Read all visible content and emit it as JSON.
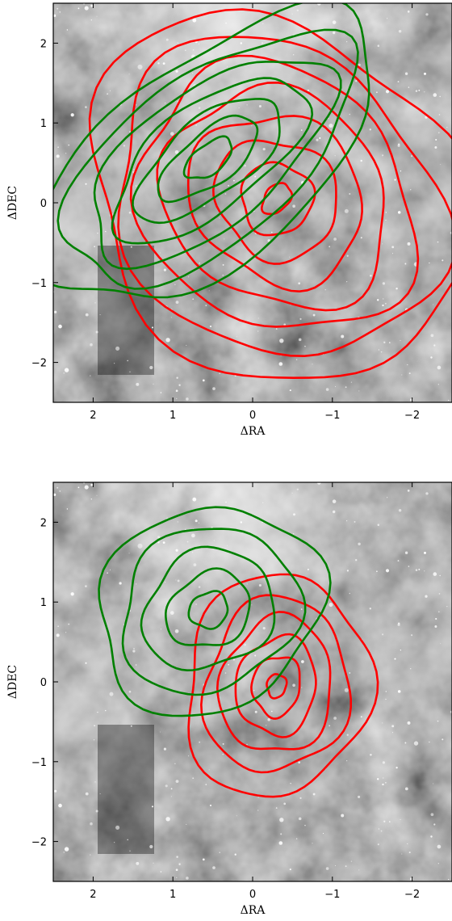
{
  "chart_data": [
    {
      "type": "contour",
      "title": "",
      "xlabel": "ΔRA",
      "ylabel": "ΔDEC",
      "xlim": [
        2.5,
        -2.5
      ],
      "ylim": [
        -2.5,
        2.5
      ],
      "x_ticks": [
        2,
        1,
        0,
        -1,
        -2
      ],
      "y_ticks": [
        -2,
        -1,
        0,
        1,
        2
      ],
      "x_tick_labels": [
        "2",
        "1",
        "0",
        "−1",
        "−2"
      ],
      "y_tick_labels": [
        "−2",
        "−1",
        "0",
        "1",
        "2"
      ],
      "background": "grayscale nebula image with stars",
      "grid": false,
      "colors": {
        "red_contours": "#ff0000",
        "green_contours": "#008000"
      },
      "series": [
        {
          "color": "red",
          "center": [
            -0.3,
            0.05
          ],
          "levels": [
            [
              0.15,
              0.22
            ],
            [
              0.45,
              0.45
            ],
            [
              0.8,
              0.72
            ],
            [
              1.15,
              1.0
            ],
            [
              1.5,
              1.28
            ],
            [
              1.85,
              1.56
            ],
            [
              2.2,
              1.84
            ],
            [
              2.55,
              2.12
            ]
          ],
          "angle_deg": 40
        },
        {
          "color": "green",
          "center": [
            0.55,
            0.55
          ],
          "levels": [
            [
              0.35,
              0.18
            ],
            [
              0.75,
              0.32
            ],
            [
              1.1,
              0.48
            ],
            [
              1.45,
              0.66
            ],
            [
              1.8,
              0.85
            ],
            [
              2.15,
              1.05
            ],
            [
              2.5,
              1.25
            ]
          ],
          "angle_deg": -38
        }
      ]
    },
    {
      "type": "contour",
      "title": "",
      "xlabel": "ΔRA",
      "ylabel": "ΔDEC",
      "xlim": [
        2.5,
        -2.5
      ],
      "ylim": [
        -2.5,
        2.5
      ],
      "x_ticks": [
        2,
        1,
        0,
        -1,
        -2
      ],
      "y_ticks": [
        -2,
        -1,
        0,
        1,
        2
      ],
      "x_tick_labels": [
        "2",
        "1",
        "0",
        "−1",
        "−2"
      ],
      "y_tick_labels": [
        "−2",
        "−1",
        "0",
        "1",
        "2"
      ],
      "background": "grayscale nebula image with stars",
      "grid": false,
      "colors": {
        "red_contours": "#ff0000",
        "green_contours": "#008000"
      },
      "series": [
        {
          "color": "red",
          "center": [
            -0.3,
            -0.05
          ],
          "levels": [
            [
              0.12,
              0.15
            ],
            [
              0.3,
              0.38
            ],
            [
              0.5,
              0.62
            ],
            [
              0.7,
              0.86
            ],
            [
              0.9,
              1.1
            ],
            [
              1.15,
              1.4
            ]
          ],
          "angle_deg": 10
        },
        {
          "color": "green",
          "center": [
            0.55,
            0.9
          ],
          "levels": [
            [
              0.25,
              0.22
            ],
            [
              0.55,
              0.45
            ],
            [
              0.85,
              0.72
            ],
            [
              1.15,
              1.0
            ],
            [
              1.45,
              1.25
            ]
          ],
          "angle_deg": -30
        }
      ]
    }
  ]
}
